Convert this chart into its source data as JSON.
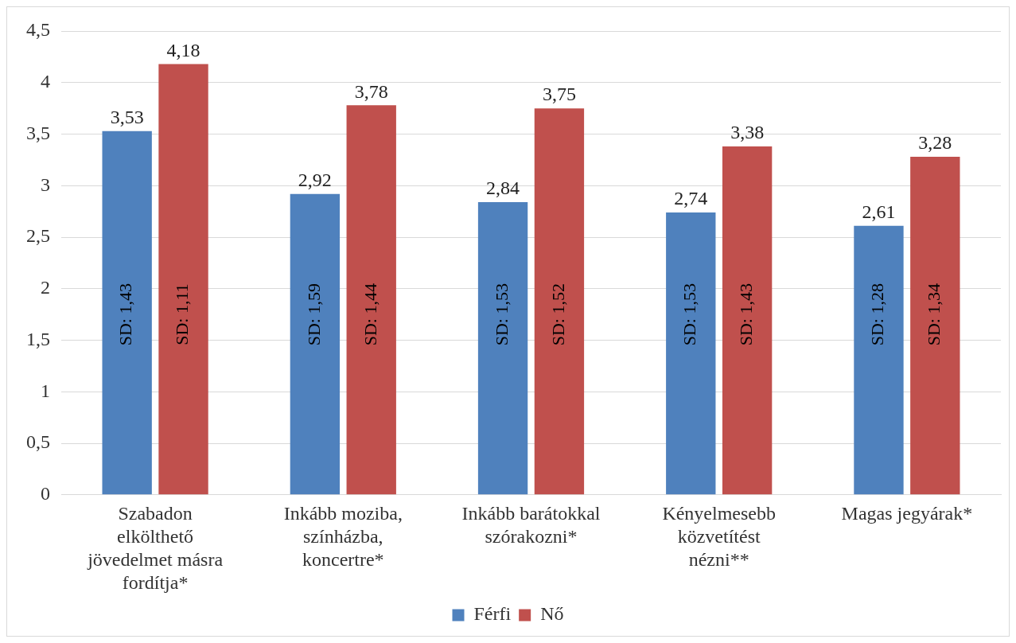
{
  "chart_data": {
    "type": "bar",
    "categories": [
      "Szabadon elkölthető jövedelmet másra fordítja*",
      "Inkább moziba, színházba, koncertre*",
      "Inkább barátokkal szórakozni*",
      "Kényelmesebb közvetítést nézni**",
      "Magas jegyárak*"
    ],
    "series": [
      {
        "name": "Férfi",
        "color": "#4f81bd",
        "values": [
          3.53,
          2.92,
          2.84,
          2.74,
          2.61
        ],
        "value_labels": [
          "3,53",
          "2,92",
          "2,84",
          "2,74",
          "2,61"
        ]
      },
      {
        "name": "Nő",
        "color": "#c0504d",
        "values": [
          4.18,
          3.78,
          3.75,
          3.38,
          3.28
        ],
        "value_labels": [
          "4,18",
          "3,78",
          "3,75",
          "3,38",
          "3,28"
        ]
      }
    ],
    "ylim": [
      0,
      4.5
    ],
    "yticks": [
      0,
      {
        "value": 0.5,
        "label": "0,5"
      },
      1,
      {
        "value": 1.5,
        "label": "1,5"
      },
      2,
      {
        "value": 2.5,
        "label": "2,5"
      },
      3,
      {
        "value": 3.5,
        "label": "3,5"
      },
      4,
      {
        "value": 4.5,
        "label": "4,5"
      }
    ],
    "grid": "y",
    "legend": "bottom",
    "annotations": [
      {
        "text": "SD: 1,43",
        "x": "Szabadon elkölthető jövedelmet másra fordítja*",
        "y": 1.75
      },
      {
        "text": "SD: 1,11",
        "x": "Szabadon elkölthető jövedelmet másra fordítja*",
        "y": 1.75
      },
      {
        "text": "SD: 1,59",
        "x": "Inkább moziba, színházba, koncertre*",
        "y": 1.75
      },
      {
        "text": "SD: 1,44",
        "x": "Inkább moziba, színházba, koncertre*",
        "y": 1.75
      },
      {
        "text": "SD: 1,53",
        "x": "Inkább barátokkal szórakozni*",
        "y": 1.75
      },
      {
        "text": "SD: 1,52",
        "x": "Inkább barátokkal szórakozni*",
        "y": 1.75
      },
      {
        "text": "SD: 1,53",
        "x": "Kényelmesebb közvetítést nézni**",
        "y": 1.75
      },
      {
        "text": "SD: 1,43",
        "x": "Kényelmesebb közvetítést nézni**",
        "y": 1.75
      },
      {
        "text": "SD: 1,28",
        "x": "Magas jegyárak*",
        "y": 1.75
      },
      {
        "text": "SD: 1,34",
        "x": "Magas jegyárak*",
        "y": 1.75
      }
    ]
  }
}
